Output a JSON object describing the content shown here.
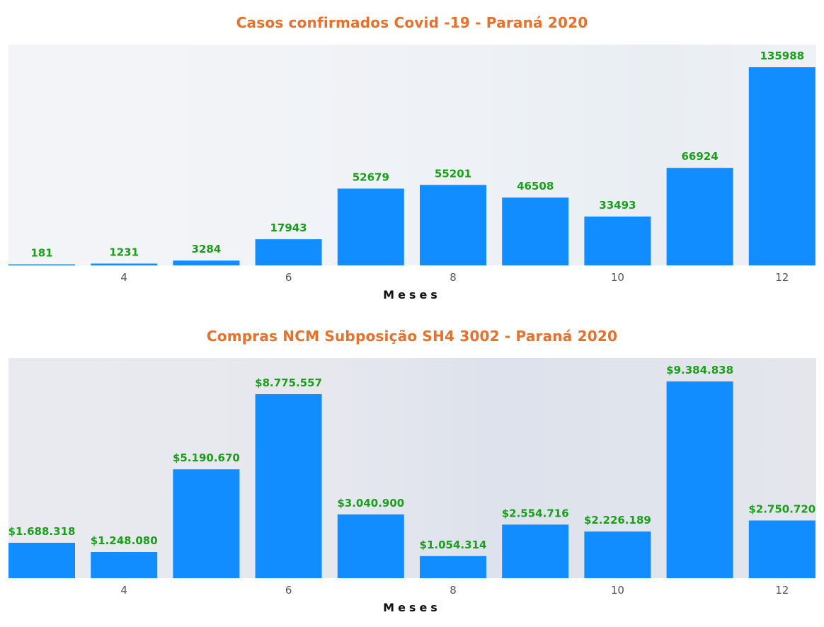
{
  "chart_data": [
    {
      "type": "bar",
      "title": "Casos confirmados Covid -19 - Paraná 2020",
      "xlabel": "Meses",
      "x": [
        3,
        4,
        5,
        6,
        7,
        8,
        9,
        10,
        11,
        12
      ],
      "values": [
        181,
        1231,
        3284,
        17943,
        52679,
        55201,
        46508,
        33493,
        66924,
        135988
      ],
      "data_labels": [
        "181",
        "1231",
        "3284",
        "17943",
        "52679",
        "55201",
        "46508",
        "33493",
        "66924",
        "135988"
      ],
      "xticks": [
        "4",
        "6",
        "8",
        "10",
        "12"
      ],
      "ylim": [
        0,
        135988
      ],
      "grid": false,
      "bar_color": "#118DFF",
      "label_color": "#1A9F1A"
    },
    {
      "type": "bar",
      "title": "Compras NCM Subposição SH4 3002 - Paraná 2020",
      "xlabel": "Meses",
      "x": [
        3,
        4,
        5,
        6,
        7,
        8,
        9,
        10,
        11,
        12
      ],
      "values": [
        1688318,
        1248080,
        5190670,
        8775557,
        3040900,
        1054314,
        2554716,
        2226189,
        9384838,
        2750720
      ],
      "data_labels": [
        "$1.688.318",
        "$1.248.080",
        "$5.190.670",
        "$8.775.557",
        "$3.040.900",
        "$1.054.314",
        "$2.554.716",
        "$2.226.189",
        "$9.384.838",
        "$2.750.720"
      ],
      "xticks": [
        "4",
        "6",
        "8",
        "10",
        "12"
      ],
      "ylim": [
        0,
        9384838
      ],
      "grid": false,
      "bar_color": "#118DFF",
      "label_color": "#1A9F1A"
    }
  ]
}
